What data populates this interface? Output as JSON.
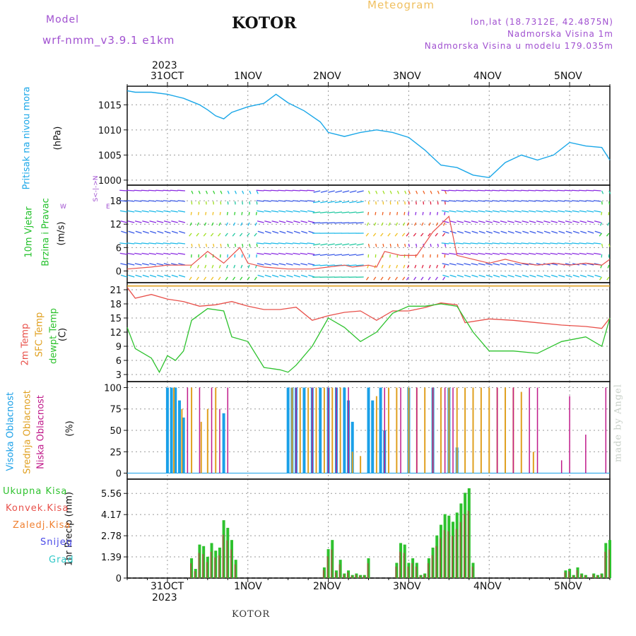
{
  "header": {
    "model_label": "Model",
    "model_name": "wrf-nmm_v3.9.1 e1km",
    "station": "KOTOR",
    "title": "Meteogram",
    "lonlat": "lon,lat (18.7312E, 42.4875N)",
    "elevation": "Nadmorska Visina 1m",
    "model_elevation": "Nadmorska Visina u modelu 179.035m",
    "footer_station": "KOTOR",
    "watermark": "made by Angel"
  },
  "colors": {
    "pressure": "#1aa7e8",
    "wind_label": "#22c02a",
    "temp2m": "#e8504a",
    "sfc_temp": "#e0a020",
    "dewpt": "#2ec22e",
    "high_cloud": "#1aa0e8",
    "mid_cloud": "#e0a020",
    "low_cloud": "#c01a8a",
    "total_precip": "#2ec22e",
    "conv_precip": "#e8504a",
    "freezing": "#f08030",
    "snow": "#4a4ae8",
    "graupel": "#30c8c8",
    "purple_text": "#a050d0"
  },
  "time_axis": {
    "year": "2023",
    "labels": [
      "31OCT",
      "1NOV",
      "2NOV",
      "3NOV",
      "4NOV",
      "5NOV"
    ],
    "start_day": 30.5,
    "end_day": 36.5
  },
  "chart_data": [
    {
      "type": "line",
      "panel": "pressure",
      "ylabel_name": "Pritisak na nivou mora",
      "ylabel_unit": "(hPa)",
      "yticks": [
        "1015",
        "1010",
        "1005",
        "1000"
      ],
      "ylim": [
        999,
        1018.7
      ],
      "grid": true,
      "series": [
        {
          "x": [
            30.5,
            30.6,
            30.8,
            31.0,
            31.2,
            31.4,
            31.5,
            31.6,
            31.7,
            31.8,
            32.0,
            32.2,
            32.35,
            32.5,
            32.7,
            32.9,
            33.0,
            33.2,
            33.4,
            33.6,
            33.8,
            34.0,
            34.2,
            34.4,
            34.6,
            34.8,
            35.0,
            35.2,
            35.4,
            35.6,
            35.8,
            36.0,
            36.2,
            36.4,
            36.5
          ],
          "values": [
            1017.8,
            1017.5,
            1017.5,
            1017.1,
            1016.3,
            1015.0,
            1014.0,
            1012.8,
            1012.2,
            1013.5,
            1014.6,
            1015.3,
            1017.1,
            1015.4,
            1013.8,
            1011.6,
            1009.5,
            1008.7,
            1009.5,
            1010.0,
            1009.5,
            1008.5,
            1006.0,
            1003.0,
            1002.5,
            1001.0,
            1000.5,
            1003.5,
            1005.0,
            1004.0,
            1005.0,
            1007.5,
            1006.8,
            1006.5,
            1004.0
          ]
        }
      ]
    },
    {
      "type": "line",
      "panel": "wind",
      "ylabel_name": "10m Vjetar",
      "ylabel_name2": "Brzina i Pravac",
      "ylabel_unit": "(m/s)",
      "direction_key": [
        "N",
        "S",
        "W",
        "E",
        "<-|->",
        "<-|->"
      ],
      "yticks": [
        "18",
        "12",
        "6",
        "0"
      ],
      "ylim": [
        -3,
        22
      ],
      "grid": true,
      "series": [
        {
          "x": [
            30.5,
            30.8,
            31.0,
            31.3,
            31.5,
            31.7,
            31.9,
            32.0,
            32.2,
            32.5,
            32.8,
            33.0,
            33.2,
            33.3,
            33.5,
            33.6,
            33.7,
            33.9,
            34.1,
            34.3,
            34.5,
            34.6,
            34.8,
            35.0,
            35.2,
            35.4,
            35.6,
            35.8,
            36.0,
            36.2,
            36.4,
            36.5
          ],
          "values": [
            0.5,
            1,
            1.5,
            1.5,
            5,
            2,
            6,
            2,
            1,
            0.5,
            0.5,
            1,
            1.5,
            1,
            1.5,
            1,
            5,
            4,
            4,
            10,
            14,
            4,
            3,
            2,
            3,
            2,
            1.5,
            2,
            1.5,
            2,
            1.5,
            3
          ]
        }
      ]
    },
    {
      "type": "line",
      "panel": "temperature",
      "ylabel_2m": "2m Temp",
      "ylabel_sfc": "SFC Temp",
      "ylabel_dewpt": "dewpt Temp",
      "ylabel_unit": "(C)",
      "yticks": [
        "21",
        "18",
        "15",
        "12",
        "9",
        "6",
        "3"
      ],
      "ylim": [
        1.5,
        22.5
      ],
      "grid": true,
      "series": [
        {
          "name": "2m Temp",
          "x": [
            30.5,
            30.6,
            30.8,
            31.0,
            31.2,
            31.4,
            31.6,
            31.8,
            32.0,
            32.2,
            32.4,
            32.6,
            32.8,
            33.0,
            33.2,
            33.4,
            33.6,
            33.8,
            34.0,
            34.2,
            34.4,
            34.6,
            34.7,
            35.0,
            35.3,
            35.6,
            35.9,
            36.2,
            36.4,
            36.5
          ],
          "values": [
            21.5,
            19.2,
            20,
            19,
            18.5,
            17.5,
            17.8,
            18.5,
            17.5,
            16.8,
            16.8,
            17.3,
            14.5,
            15.5,
            16.2,
            16.5,
            14.5,
            16.5,
            16.5,
            17.2,
            18.2,
            17.8,
            14,
            14.8,
            14.5,
            14,
            13.5,
            13.2,
            12.8,
            15
          ]
        },
        {
          "name": "SFC Temp",
          "x": [
            30.5,
            36.5
          ],
          "values": [
            21.8,
            21.8
          ]
        },
        {
          "name": "dewpt Temp",
          "x": [
            30.5,
            30.6,
            30.8,
            30.9,
            31.0,
            31.1,
            31.2,
            31.3,
            31.5,
            31.7,
            31.8,
            32.0,
            32.2,
            32.4,
            32.5,
            32.6,
            32.8,
            33.0,
            33.2,
            33.4,
            33.6,
            33.8,
            34.0,
            34.2,
            34.4,
            34.6,
            34.8,
            35.0,
            35.3,
            35.6,
            35.9,
            36.2,
            36.4,
            36.5
          ],
          "values": [
            13,
            8.5,
            6.5,
            3.5,
            7,
            6,
            8,
            14.5,
            17,
            16.5,
            11,
            10,
            4.5,
            4,
            3.5,
            5,
            9,
            15,
            13,
            10,
            12,
            16,
            17.5,
            17.5,
            18,
            17.5,
            12,
            8,
            8,
            7.5,
            10,
            11,
            9,
            15
          ]
        }
      ]
    },
    {
      "type": "bar",
      "panel": "cloud",
      "ylabel_high": "Visoka Oblacnost",
      "ylabel_mid": "Srednja Oblacnost",
      "ylabel_low": "Niska Oblacnost",
      "ylabel_unit": "(%)",
      "yticks": [
        "100",
        "75",
        "50",
        "25",
        "0"
      ],
      "ylim": [
        -7,
        107
      ],
      "grid": true,
      "series": [
        {
          "name": "Visoka Oblacnost",
          "x": [
            31.0,
            31.05,
            31.1,
            31.15,
            31.2,
            31.7,
            32.5,
            32.55,
            32.6,
            32.7,
            32.8,
            32.9,
            33.0,
            33.1,
            33.2,
            33.25,
            33.3,
            33.5,
            33.55,
            33.65,
            33.7,
            34.0,
            34.3,
            34.5,
            34.6
          ],
          "values": [
            100,
            100,
            100,
            85,
            65,
            70,
            100,
            100,
            100,
            100,
            100,
            100,
            100,
            100,
            100,
            85,
            60,
            100,
            85,
            100,
            50,
            100,
            100,
            100,
            30
          ]
        },
        {
          "name": "Srednja Oblacnost",
          "x": [
            31.08,
            31.18,
            31.3,
            31.42,
            31.5,
            31.6,
            32.55,
            32.65,
            32.75,
            32.85,
            32.95,
            33.05,
            33.15,
            33.3,
            33.4,
            33.6,
            33.75,
            33.85,
            34.0,
            34.1,
            34.2,
            34.3,
            34.4,
            34.5,
            34.6,
            34.7,
            34.8,
            34.9,
            35.0,
            35.1,
            35.2,
            35.3,
            35.4,
            35.55
          ],
          "values": [
            100,
            75,
            100,
            60,
            75,
            100,
            100,
            100,
            100,
            100,
            100,
            100,
            100,
            25,
            20,
            90,
            100,
            100,
            100,
            100,
            100,
            100,
            100,
            100,
            100,
            100,
            100,
            100,
            100,
            100,
            100,
            100,
            95,
            25
          ]
        },
        {
          "name": "Niska Oblacnost",
          "x": [
            31.25,
            31.4,
            31.55,
            31.65,
            31.75,
            32.6,
            32.8,
            33.0,
            33.1,
            33.25,
            33.7,
            33.9,
            34.1,
            34.3,
            34.45,
            34.55,
            35.1,
            35.3,
            35.5,
            35.6,
            35.9,
            36.0,
            36.2,
            36.45
          ],
          "values": [
            100,
            100,
            100,
            75,
            100,
            100,
            100,
            100,
            100,
            100,
            100,
            100,
            100,
            100,
            100,
            100,
            100,
            100,
            100,
            100,
            15,
            90,
            45,
            100
          ]
        }
      ]
    },
    {
      "type": "bar",
      "panel": "precip",
      "legend": [
        "Ukupna Kisa",
        "Konvek.Kisa",
        "Zaledj.Kisa",
        "Snijeg",
        "Grad"
      ],
      "ylabel": "1hr Precip (mm)",
      "yticks": [
        "5.56",
        "4.17",
        "2.78",
        "1.39",
        "0"
      ],
      "ylim": [
        0,
        6.5
      ],
      "grid": true,
      "series": [
        {
          "name": "Ukupna Kisa",
          "x": [
            31.3,
            31.35,
            31.4,
            31.45,
            31.5,
            31.55,
            31.6,
            31.65,
            31.7,
            31.75,
            31.8,
            31.85,
            32.95,
            33.0,
            33.05,
            33.1,
            33.15,
            33.2,
            33.25,
            33.3,
            33.35,
            33.4,
            33.45,
            33.5,
            33.85,
            33.9,
            33.95,
            34.0,
            34.05,
            34.1,
            34.15,
            34.2,
            34.25,
            34.3,
            34.35,
            34.4,
            34.45,
            34.5,
            34.55,
            34.6,
            34.65,
            34.7,
            34.75,
            34.8,
            35.95,
            36.0,
            36.05,
            36.1,
            36.15,
            36.2,
            36.3,
            36.35,
            36.4,
            36.45,
            36.5
          ],
          "values": [
            1.3,
            0.6,
            2.2,
            2.1,
            1.4,
            2.3,
            1.8,
            2.0,
            3.8,
            3.3,
            2.5,
            1.2,
            0.7,
            1.9,
            2.5,
            0.5,
            1.2,
            0.3,
            0.5,
            0.2,
            0.3,
            0.2,
            0.2,
            1.3,
            1.0,
            2.3,
            2.2,
            1.0,
            1.3,
            1.0,
            0.2,
            0.3,
            1.3,
            2.0,
            2.8,
            3.5,
            4.2,
            4.1,
            3.7,
            4.3,
            4.9,
            5.6,
            5.9,
            1.0,
            0.5,
            0.6,
            0.2,
            0.7,
            0.3,
            0.2,
            0.3,
            0.2,
            0.3,
            2.3,
            2.5
          ]
        }
      ]
    }
  ]
}
